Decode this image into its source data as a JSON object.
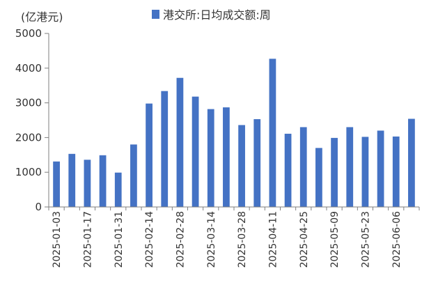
{
  "chart_data": {
    "type": "bar",
    "unit_label": "(亿港元)",
    "series": [
      {
        "name": "港交所:日均成交额:周",
        "color": "#4472C4",
        "values": [
          1310,
          1530,
          1360,
          1490,
          990,
          1800,
          2980,
          3340,
          3720,
          3180,
          2820,
          2870,
          2360,
          2530,
          4270,
          2110,
          2300,
          1700,
          1990,
          2300,
          2020,
          2200,
          2030,
          2540
        ]
      }
    ],
    "categories": [
      "2025-01-03",
      "2025-01-10",
      "2025-01-17",
      "2025-01-24",
      "2025-01-31",
      "2025-02-07",
      "2025-02-14",
      "2025-02-21",
      "2025-02-28",
      "2025-03-07",
      "2025-03-14",
      "2025-03-21",
      "2025-03-28",
      "2025-04-04",
      "2025-04-11",
      "2025-04-18",
      "2025-04-25",
      "2025-05-02",
      "2025-05-09",
      "2025-05-16",
      "2025-05-23",
      "2025-05-30",
      "2025-06-06",
      "2025-06-13"
    ],
    "tick_labels_shown": [
      "2025-01-03",
      "2025-01-17",
      "2025-01-31",
      "2025-02-14",
      "2025-02-28",
      "2025-03-14",
      "2025-03-28",
      "2025-04-11",
      "2025-04-25",
      "2025-05-09",
      "2025-05-23",
      "2025-06-06"
    ],
    "ylim": [
      0,
      5000
    ],
    "yticks": [
      0,
      1000,
      2000,
      3000,
      4000,
      5000
    ],
    "legend_position": "top",
    "grid": false
  }
}
